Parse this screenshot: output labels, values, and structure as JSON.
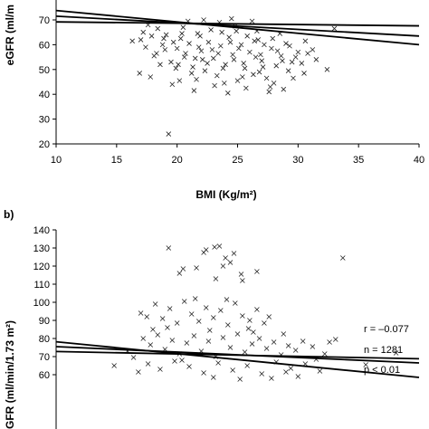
{
  "chart_data": [
    {
      "type": "scatter",
      "panel_label": "",
      "xlabel": "BMI (Kg/m²)",
      "ylabel": "eGFR (ml/m",
      "xlim": [
        10,
        40
      ],
      "ylim": [
        20,
        72
      ],
      "x_ticks": [
        "10",
        "15",
        "20",
        "25",
        "30",
        "35",
        "40"
      ],
      "y_ticks": [
        "20",
        "30",
        "40",
        "50",
        "60",
        "70"
      ],
      "marker": "×",
      "series": [
        {
          "points": [
            [
              16.3,
              61.5
            ],
            [
              17.0,
              62.0
            ],
            [
              17.4,
              59.0
            ],
            [
              17.9,
              63.5
            ],
            [
              18.3,
              56.5
            ],
            [
              18.8,
              60.0
            ],
            [
              19.1,
              64.0
            ],
            [
              19.5,
              53.0
            ],
            [
              20.0,
              58.5
            ],
            [
              20.3,
              62.5
            ],
            [
              20.6,
              55.0
            ],
            [
              21.0,
              60.5
            ],
            [
              21.3,
              51.0
            ],
            [
              21.7,
              64.5
            ],
            [
              22.0,
              57.5
            ],
            [
              22.3,
              49.5
            ],
            [
              22.6,
              61.0
            ],
            [
              23.0,
              54.5
            ],
            [
              23.3,
              47.5
            ],
            [
              23.6,
              59.5
            ],
            [
              24.0,
              52.0
            ],
            [
              24.3,
              63.0
            ],
            [
              24.6,
              56.0
            ],
            [
              25.0,
              45.5
            ],
            [
              25.3,
              60.0
            ],
            [
              25.6,
              50.5
            ],
            [
              26.0,
              57.0
            ],
            [
              26.3,
              48.0
            ],
            [
              26.7,
              62.0
            ],
            [
              27.0,
              53.5
            ],
            [
              27.4,
              46.5
            ],
            [
              27.8,
              58.5
            ],
            [
              28.2,
              51.5
            ],
            [
              28.6,
              55.5
            ],
            [
              29.0,
              60.5
            ],
            [
              29.5,
              53.0
            ],
            [
              30.0,
              57.0
            ],
            [
              30.8,
              56.5
            ],
            [
              31.5,
              54.0
            ],
            [
              16.9,
              48.5
            ],
            [
              17.8,
              47.0
            ],
            [
              18.4,
              66.5
            ],
            [
              19.6,
              44.0
            ],
            [
              20.5,
              67.0
            ],
            [
              21.6,
              46.0
            ],
            [
              22.8,
              66.0
            ],
            [
              23.9,
              44.5
            ],
            [
              24.8,
              67.5
            ],
            [
              25.7,
              42.5
            ],
            [
              26.6,
              65.5
            ],
            [
              27.7,
              43.0
            ],
            [
              28.5,
              64.5
            ],
            [
              29.6,
              46.5
            ],
            [
              30.5,
              48.5
            ],
            [
              19.3,
              24.0
            ],
            [
              32.4,
              50.0
            ],
            [
              33.0,
              66.5
            ],
            [
              20.9,
              69.5
            ],
            [
              22.2,
              70.0
            ],
            [
              23.5,
              69.0
            ],
            [
              24.5,
              70.5
            ],
            [
              26.2,
              69.5
            ],
            [
              17.6,
              68.0
            ],
            [
              27.6,
              41.0
            ],
            [
              28.8,
              42.0
            ],
            [
              21.4,
              41.5
            ],
            [
              24.2,
              40.5
            ],
            [
              18.6,
              52.0
            ],
            [
              19.9,
              50.5
            ],
            [
              21.2,
              48.5
            ],
            [
              25.4,
              47.0
            ],
            [
              26.8,
              49.0
            ],
            [
              23.1,
              43.5
            ],
            [
              20.2,
              45.5
            ],
            [
              28.0,
              44.5
            ],
            [
              29.2,
              49.5
            ],
            [
              22.5,
              52.5
            ],
            [
              24.7,
              54.0
            ],
            [
              26.5,
              55.0
            ],
            [
              18.1,
              55.5
            ],
            [
              30.3,
              52.5
            ],
            [
              31.2,
              58.0
            ],
            [
              27.2,
              60.0
            ],
            [
              19.0,
              58.0
            ],
            [
              21.9,
              63.5
            ],
            [
              23.7,
              65.0
            ],
            [
              25.8,
              63.5
            ],
            [
              20.7,
              56.5
            ],
            [
              22.9,
              58.0
            ],
            [
              24.4,
              61.0
            ],
            [
              25.1,
              58.5
            ],
            [
              26.9,
              56.0
            ],
            [
              28.3,
              57.5
            ],
            [
              29.8,
              55.0
            ],
            [
              17.2,
              65.0
            ],
            [
              18.9,
              62.5
            ],
            [
              20.4,
              64.5
            ],
            [
              21.8,
              59.0
            ],
            [
              23.4,
              56.5
            ],
            [
              24.9,
              65.5
            ],
            [
              26.4,
              61.5
            ],
            [
              27.9,
              62.5
            ],
            [
              29.3,
              59.5
            ],
            [
              30.6,
              61.5
            ],
            [
              22.1,
              54.0
            ],
            [
              23.8,
              50.5
            ],
            [
              25.5,
              52.5
            ],
            [
              27.1,
              51.0
            ],
            [
              28.7,
              53.5
            ],
            [
              20.1,
              52.0
            ],
            [
              21.5,
              54.5
            ],
            [
              19.7,
              61.0
            ]
          ]
        }
      ],
      "lines": [
        {
          "kind": "regression",
          "x": [
            10,
            40
          ],
          "y": [
            71.5,
            63.5
          ]
        },
        {
          "kind": "confidence-band",
          "x": [
            10,
            40
          ],
          "y": [
            73.8,
            60.0
          ]
        },
        {
          "kind": "confidence-band",
          "x": [
            10,
            40
          ],
          "y": [
            69.2,
            67.6
          ]
        }
      ]
    },
    {
      "type": "scatter",
      "panel_label": "b)",
      "xlabel": "",
      "ylabel": "GFR (ml/min/1.73 m²)",
      "xlim": [
        10,
        40
      ],
      "ylim": [
        55,
        140
      ],
      "x_ticks": [],
      "y_ticks": [
        "60",
        "70",
        "80",
        "90",
        "100",
        "110",
        "120",
        "130",
        "140"
      ],
      "marker": "×",
      "annotations": [
        "r = –0.077",
        "n = 1281",
        "p < 0.01"
      ],
      "series": [
        {
          "points": [
            [
              19.3,
              130.0
            ],
            [
              22.4,
              129.0
            ],
            [
              23.1,
              130.5
            ],
            [
              23.5,
              131.0
            ],
            [
              22.2,
              127.5
            ],
            [
              24.7,
              127.0
            ],
            [
              20.2,
              116.0
            ],
            [
              20.5,
              118.5
            ],
            [
              21.6,
              119.0
            ],
            [
              23.8,
              120.0
            ],
            [
              24.4,
              122.0
            ],
            [
              24.0,
              124.5
            ],
            [
              25.3,
              115.5
            ],
            [
              26.6,
              117.0
            ],
            [
              25.4,
              112.0
            ],
            [
              23.2,
              113.0
            ],
            [
              33.7,
              124.5
            ],
            [
              17.0,
              94.0
            ],
            [
              17.5,
              92.0
            ],
            [
              18.2,
              99.0
            ],
            [
              18.8,
              91.0
            ],
            [
              19.4,
              96.5
            ],
            [
              20.0,
              88.5
            ],
            [
              20.6,
              100.5
            ],
            [
              21.2,
              93.5
            ],
            [
              21.8,
              89.5
            ],
            [
              22.4,
              97.0
            ],
            [
              23.0,
              91.5
            ],
            [
              23.6,
              95.5
            ],
            [
              24.2,
              87.5
            ],
            [
              24.8,
              99.5
            ],
            [
              25.4,
              92.5
            ],
            [
              26.0,
              90.0
            ],
            [
              26.6,
              96.0
            ],
            [
              27.2,
              88.5
            ],
            [
              17.2,
              80.0
            ],
            [
              17.8,
              76.5
            ],
            [
              18.4,
              82.0
            ],
            [
              19.0,
              74.0
            ],
            [
              19.6,
              79.0
            ],
            [
              20.2,
              71.5
            ],
            [
              20.8,
              77.5
            ],
            [
              21.4,
              81.5
            ],
            [
              22.0,
              73.0
            ],
            [
              22.6,
              78.5
            ],
            [
              23.2,
              70.0
            ],
            [
              23.8,
              80.5
            ],
            [
              24.4,
              75.0
            ],
            [
              25.0,
              82.5
            ],
            [
              25.6,
              72.5
            ],
            [
              26.2,
              77.0
            ],
            [
              26.8,
              80.0
            ],
            [
              27.4,
              74.5
            ],
            [
              28.0,
              78.0
            ],
            [
              28.6,
              71.0
            ],
            [
              29.2,
              76.0
            ],
            [
              29.8,
              73.5
            ],
            [
              30.4,
              78.5
            ],
            [
              31.2,
              75.5
            ],
            [
              16.4,
              69.5
            ],
            [
              17.6,
              66.0
            ],
            [
              18.6,
              63.0
            ],
            [
              19.8,
              67.5
            ],
            [
              21.0,
              64.5
            ],
            [
              22.2,
              61.0
            ],
            [
              23.4,
              66.5
            ],
            [
              24.6,
              62.5
            ],
            [
              25.8,
              65.0
            ],
            [
              27.0,
              60.5
            ],
            [
              28.2,
              67.0
            ],
            [
              29.4,
              63.5
            ],
            [
              30.6,
              66.0
            ],
            [
              31.8,
              62.0
            ],
            [
              32.6,
              78.0
            ],
            [
              33.1,
              79.5
            ],
            [
              35.6,
              65.5
            ],
            [
              38.1,
              72.0
            ],
            [
              30.0,
              59.0
            ],
            [
              15.9,
              73.0
            ],
            [
              14.8,
              65.0
            ],
            [
              19.2,
              86.0
            ],
            [
              22.7,
              84.5
            ],
            [
              25.9,
              85.5
            ],
            [
              27.6,
              92.0
            ],
            [
              21.5,
              102.0
            ],
            [
              24.1,
              101.5
            ],
            [
              18.0,
              85.0
            ],
            [
              26.3,
              83.5
            ],
            [
              28.8,
              82.5
            ],
            [
              20.4,
              68.0
            ],
            [
              23.0,
              58.5
            ],
            [
              25.2,
              57.5
            ],
            [
              27.8,
              58.0
            ],
            [
              29.0,
              61.5
            ],
            [
              16.8,
              61.5
            ],
            [
              31.5,
              68.5
            ],
            [
              32.2,
              71.5
            ]
          ]
        }
      ],
      "lines": [
        {
          "kind": "regression",
          "x": [
            10,
            40
          ],
          "y": [
            75.5,
            66.5
          ]
        },
        {
          "kind": "confidence-band",
          "x": [
            10,
            40
          ],
          "y": [
            78.2,
            58.5
          ]
        },
        {
          "kind": "confidence-band",
          "x": [
            10,
            40
          ],
          "y": [
            72.8,
            68.8
          ]
        }
      ]
    }
  ]
}
